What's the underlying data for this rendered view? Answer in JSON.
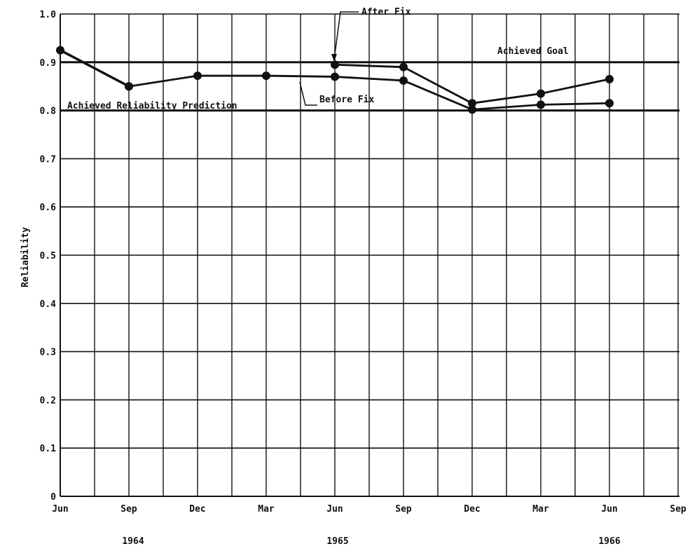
{
  "chart_data": {
    "type": "line",
    "title": "",
    "xlabel": "",
    "ylabel": "Reliability",
    "ylim": [
      0,
      1.0
    ],
    "yticks": [
      "0",
      "0.1",
      "0.2",
      "0.3",
      "0.4",
      "0.5",
      "0.6",
      "0.7",
      "0.8",
      "0.9",
      "1.0"
    ],
    "xticks": [
      "Jun",
      "Sep",
      "Dec",
      "Mar",
      "Jun",
      "Sep",
      "Dec",
      "Mar",
      "Jun",
      "Sep"
    ],
    "years": [
      "1964",
      "1965",
      "1966"
    ],
    "grid": true,
    "reference_lines": [
      {
        "label": "Achieved Goal",
        "y": 0.9
      },
      {
        "label": "",
        "y": 0.8
      }
    ],
    "series": [
      {
        "name": "Achieved Reliability Prediction",
        "points": [
          [
            0,
            0.925
          ],
          [
            1,
            0.85
          ]
        ]
      },
      {
        "name": "Before Fix",
        "points": [
          [
            1,
            0.85
          ],
          [
            2,
            0.872
          ],
          [
            3,
            0.872
          ],
          [
            4,
            0.87
          ],
          [
            5,
            0.862
          ],
          [
            6,
            0.802
          ],
          [
            7,
            0.812
          ],
          [
            8,
            0.815
          ]
        ]
      },
      {
        "name": "After Fix",
        "points": [
          [
            4,
            0.895
          ],
          [
            5,
            0.89
          ],
          [
            6,
            0.815
          ],
          [
            7,
            0.835
          ],
          [
            8,
            0.865
          ]
        ]
      }
    ],
    "annotations": [
      {
        "text": "Achieved Reliability Prediction"
      },
      {
        "text": "Before Fix"
      },
      {
        "text": "After Fix"
      },
      {
        "text": "Achieved Goal"
      }
    ]
  }
}
